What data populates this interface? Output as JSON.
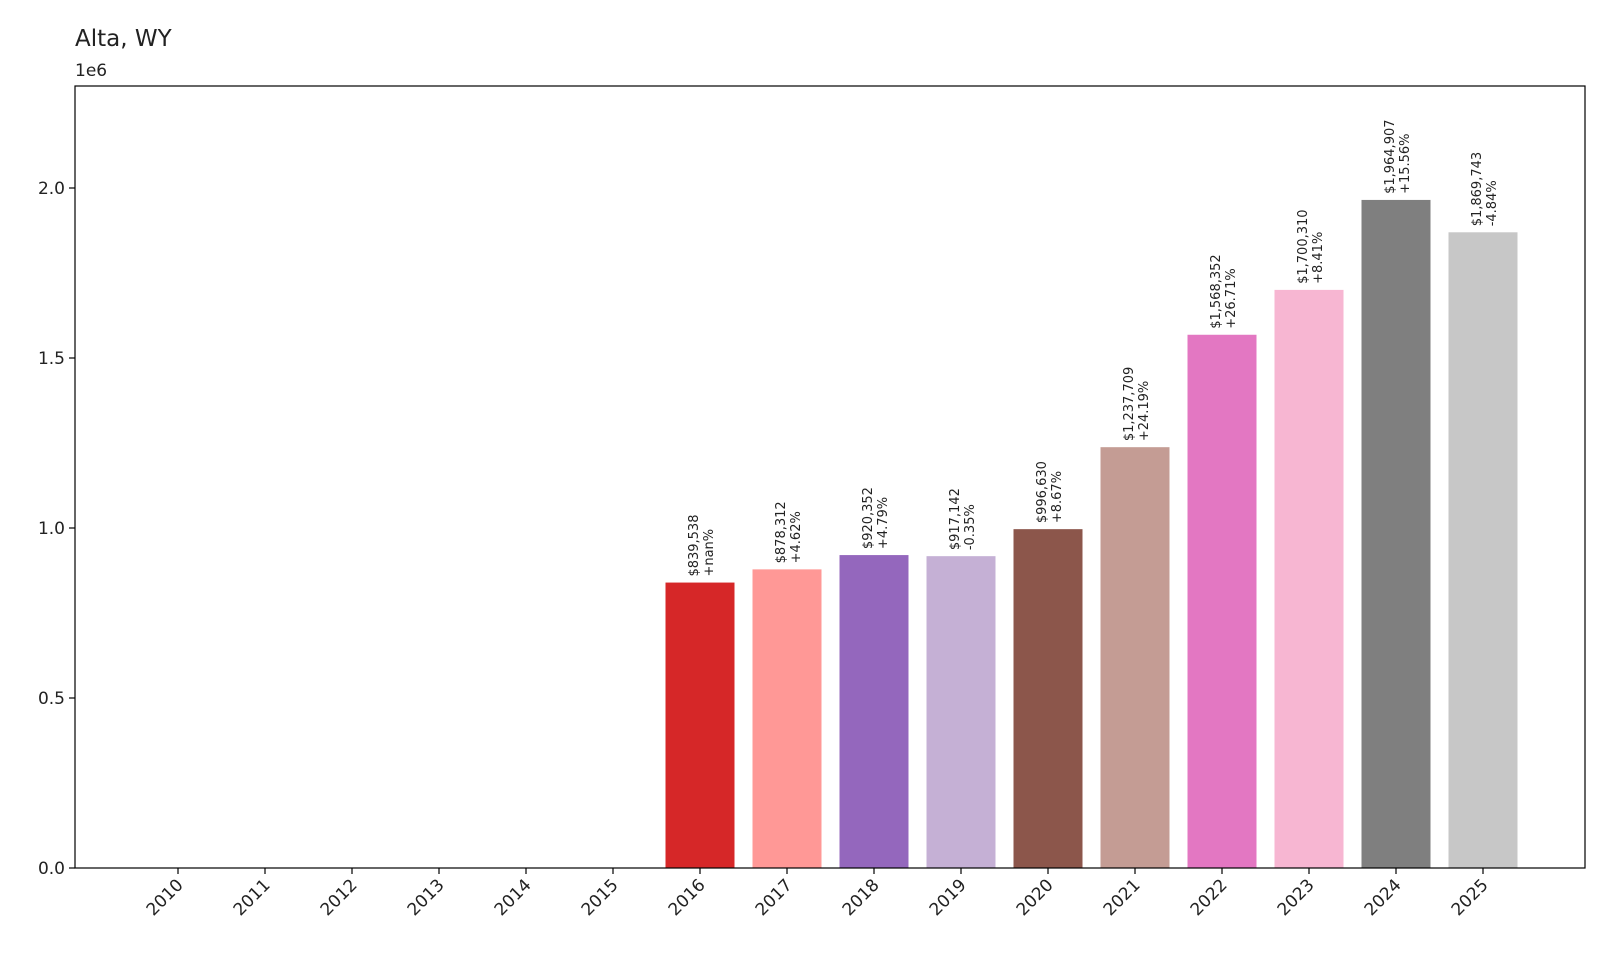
{
  "chart_data": {
    "type": "bar",
    "title": "Alta, WY",
    "y_offset_label": "1e6",
    "y_scale": 1000000,
    "xlabel": "",
    "ylabel": "",
    "ylim": [
      0,
      2300000
    ],
    "yticks": [
      0,
      500000,
      1000000,
      1500000,
      2000000
    ],
    "ytick_labels": [
      "0.0",
      "0.5",
      "1.0",
      "1.5",
      "2.0"
    ],
    "grid": false,
    "legend": "none",
    "categories": [
      "2010",
      "2011",
      "2012",
      "2013",
      "2014",
      "2015",
      "2016",
      "2017",
      "2018",
      "2019",
      "2020",
      "2021",
      "2022",
      "2023",
      "2024",
      "2025"
    ],
    "values": [
      0,
      0,
      0,
      0,
      0,
      0,
      839538,
      878312,
      920352,
      917142,
      996630,
      1237709,
      1568352,
      1700310,
      1964907,
      1869743
    ],
    "value_labels": [
      "",
      "",
      "",
      "",
      "",
      "",
      "$839,538",
      "$878,312",
      "$920,352",
      "$917,142",
      "$996,630",
      "$1,237,709",
      "$1,568,352",
      "$1,700,310",
      "$1,964,907",
      "$1,869,743"
    ],
    "change_labels": [
      "",
      "",
      "",
      "",
      "",
      "",
      "+nan%",
      "+4.62%",
      "+4.79%",
      "-0.35%",
      "+8.67%",
      "+24.19%",
      "+26.71%",
      "+8.41%",
      "+15.56%",
      "-4.84%"
    ],
    "colors": [
      "#1f77b4",
      "#ff7f0e",
      "#2ca02c",
      "#98df8a",
      "#d62728",
      "#ff9896",
      "#d62728",
      "#ff9896",
      "#9467bd",
      "#c5b0d5",
      "#8c564b",
      "#c49c94",
      "#e377c2",
      "#f7b6d2",
      "#7f7f7f",
      "#c7c7c7"
    ]
  }
}
